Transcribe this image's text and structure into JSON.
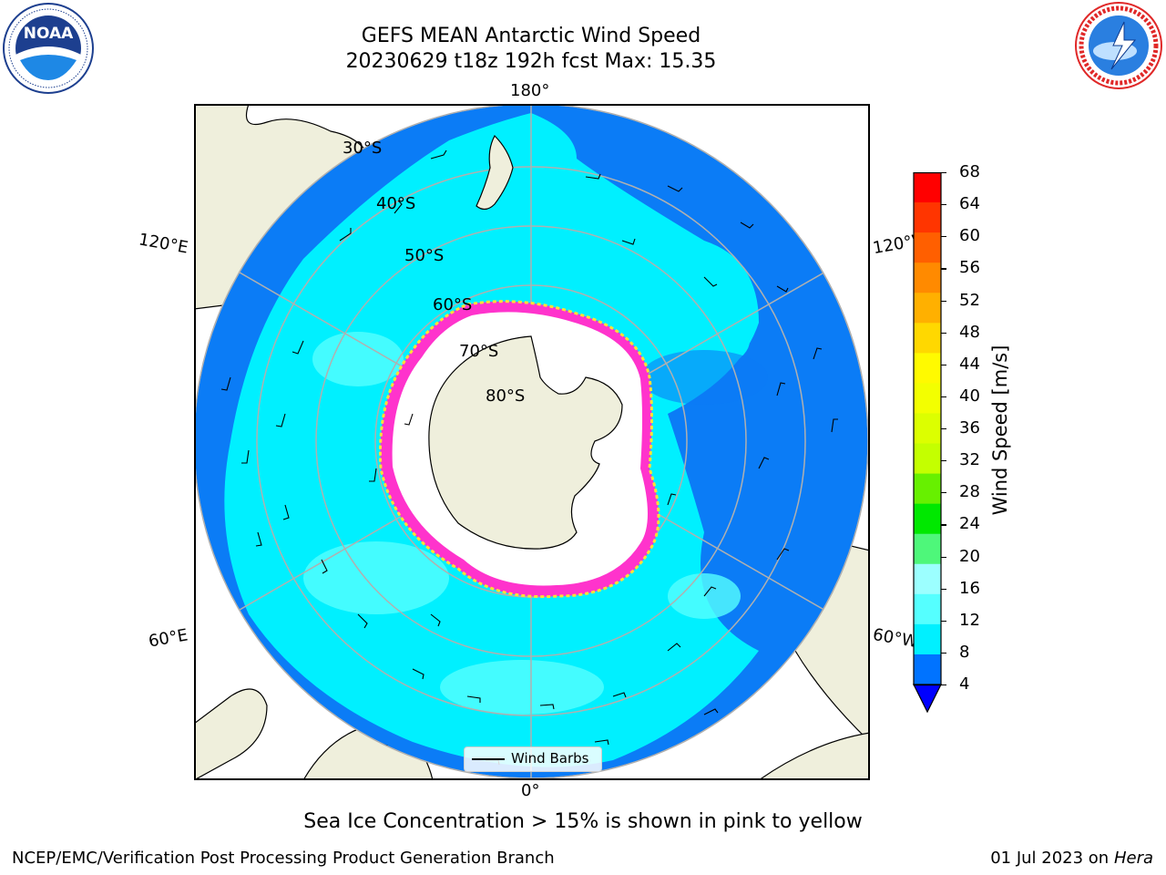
{
  "header": {
    "title_line1": "GEFS MEAN Antarctic Wind Speed",
    "title_line2": "20230629 t18z 192h fcst   Max: 15.35"
  },
  "logos": {
    "left": {
      "text": "NOAA",
      "ring_text": "NATIONAL OCEANIC AND ATMOSPHERIC ADMINISTRATION · U.S. DEPARTMENT OF COMMERCE",
      "color": "#1d3f8f"
    },
    "right": {
      "ring_text": "NATIONAL WEATHER SERVICE",
      "color": "#e02828"
    }
  },
  "map": {
    "projection": "south-polar-stereographic",
    "meridian_labels": {
      "top": "180°",
      "bottom": "0°",
      "upper_left": "120°E",
      "upper_right": "120°W",
      "lower_left": "60°E",
      "lower_right": "60°W"
    },
    "latitude_labels": [
      "30°S",
      "40°S",
      "50°S",
      "60°S",
      "70°S",
      "80°S"
    ],
    "ocean_color": "#0b7cf6",
    "wind_color": "#00f0ff",
    "land_color": "#efefdc",
    "sea_ice_colors": [
      "#ff33cc",
      "#ffe135"
    ]
  },
  "legend": {
    "label": "Wind Barbs"
  },
  "colorbar": {
    "label": "Wind Speed [m/s]",
    "ticks": [
      "68",
      "64",
      "60",
      "56",
      "52",
      "48",
      "44",
      "40",
      "36",
      "32",
      "28",
      "24",
      "20",
      "16",
      "12",
      "8",
      "4"
    ],
    "colors": [
      "#ff0000",
      "#ff3500",
      "#ff5f00",
      "#ff8a00",
      "#ffb000",
      "#ffd800",
      "#fffa00",
      "#f3ff00",
      "#dcff00",
      "#c4ff00",
      "#67f000",
      "#00e800",
      "#4ef77a",
      "#9cffff",
      "#55ffff",
      "#00f0ff",
      "#0073ff"
    ],
    "extend_color": "#0000ff"
  },
  "caption": "Sea Ice Concentration > 15% is shown in pink to yellow",
  "footer": {
    "left": "NCEP/EMC/Verification Post Processing Product Generation Branch",
    "right_prefix": "01 Jul 2023 on ",
    "right_machine": "Hera"
  }
}
